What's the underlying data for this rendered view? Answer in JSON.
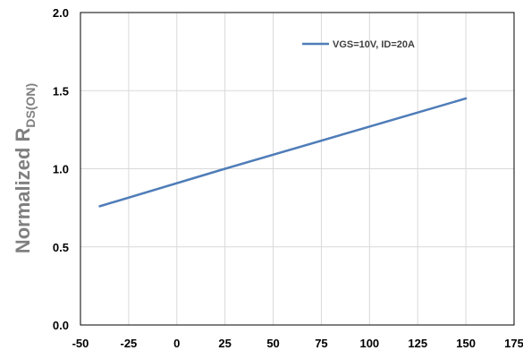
{
  "chart_data": {
    "type": "line",
    "title": "",
    "xlabel": "",
    "ylabel": "Normalized R",
    "ylabel_subscript": "DS(ON)",
    "xlim": [
      -50,
      175
    ],
    "ylim": [
      0.0,
      2.0
    ],
    "x_ticks": [
      "-50",
      "-25",
      "0",
      "25",
      "50",
      "75",
      "100",
      "125",
      "150",
      "175"
    ],
    "y_ticks": [
      "0.0",
      "0.5",
      "1.0",
      "1.5",
      "2.0"
    ],
    "grid": true,
    "legend_position": "top-right",
    "series": [
      {
        "name": "VGS=10V, ID=20A",
        "color": "#4f7db8",
        "x": [
          -40,
          25,
          150
        ],
        "y": [
          0.76,
          1.0,
          1.45
        ]
      }
    ]
  }
}
